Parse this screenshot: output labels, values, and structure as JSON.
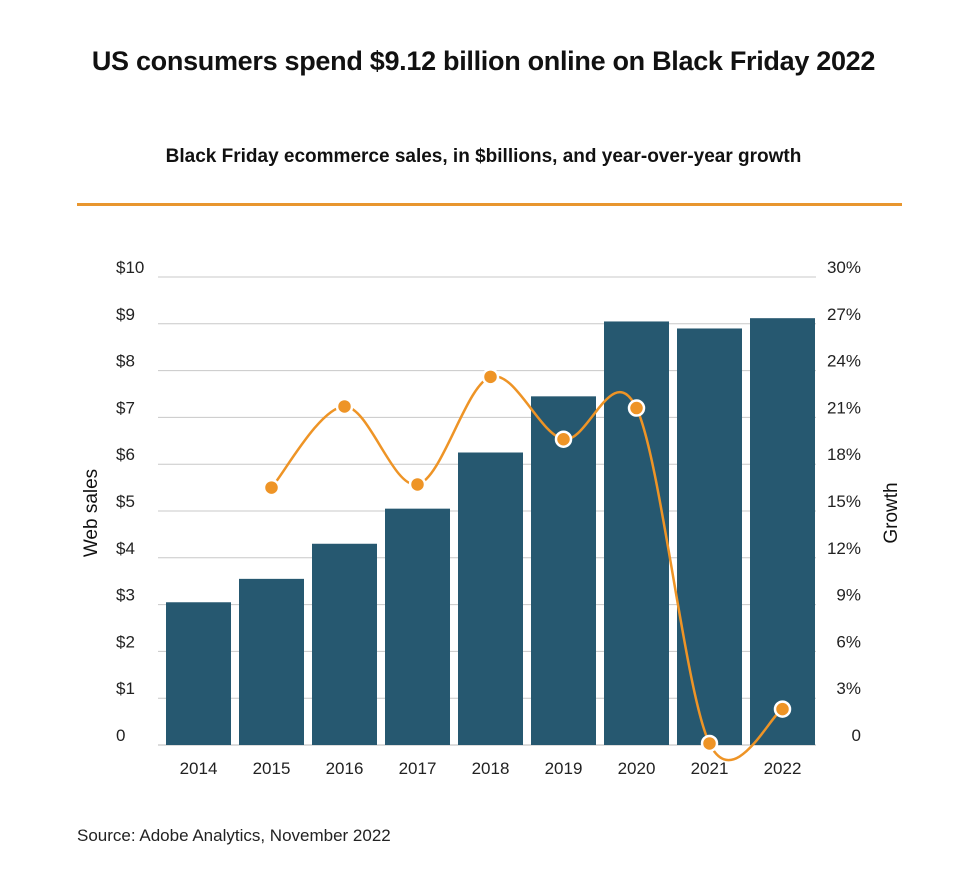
{
  "header": {
    "title": "US consumers spend $9.12 billion online on Black Friday 2022",
    "subtitle": "Black Friday ecommerce sales, in $billions, and year-over-year growth"
  },
  "footer": {
    "source": "Source: Adobe Analytics, November 2022"
  },
  "colors": {
    "bar": "#265870",
    "line": "#ee9426",
    "rule": "#e8962e",
    "grid": "#c8c8c8"
  },
  "chart_data": {
    "type": "bar",
    "categories": [
      "2014",
      "2015",
      "2016",
      "2017",
      "2018",
      "2019",
      "2020",
      "2021",
      "2022"
    ],
    "series": [
      {
        "name": "Web sales",
        "type": "bar",
        "axis": "left",
        "values": [
          3.05,
          3.55,
          4.3,
          5.05,
          6.25,
          7.45,
          9.05,
          8.9,
          9.12
        ]
      },
      {
        "name": "Growth",
        "type": "line",
        "axis": "right",
        "values": [
          null,
          16.5,
          21.7,
          16.7,
          23.6,
          19.6,
          21.6,
          0.1,
          2.3
        ]
      }
    ],
    "left_axis": {
      "label": "Web sales",
      "range": [
        0,
        10
      ],
      "ticks": [
        {
          "value": 0,
          "label": "0"
        },
        {
          "value": 1,
          "label": "$1"
        },
        {
          "value": 2,
          "label": "$2"
        },
        {
          "value": 3,
          "label": "$3"
        },
        {
          "value": 4,
          "label": "$4"
        },
        {
          "value": 5,
          "label": "$5"
        },
        {
          "value": 6,
          "label": "$6"
        },
        {
          "value": 7,
          "label": "$7"
        },
        {
          "value": 8,
          "label": "$8"
        },
        {
          "value": 9,
          "label": "$9"
        },
        {
          "value": 10,
          "label": "$10"
        }
      ]
    },
    "right_axis": {
      "label": "Growth",
      "range": [
        0,
        30
      ],
      "ticks": [
        {
          "value": 0,
          "label": "0"
        },
        {
          "value": 3,
          "label": "3%"
        },
        {
          "value": 6,
          "label": "6%"
        },
        {
          "value": 9,
          "label": "9%"
        },
        {
          "value": 12,
          "label": "12%"
        },
        {
          "value": 15,
          "label": "15%"
        },
        {
          "value": 18,
          "label": "18%"
        },
        {
          "value": 21,
          "label": "21%"
        },
        {
          "value": 24,
          "label": "24%"
        },
        {
          "value": 27,
          "label": "27%"
        },
        {
          "value": 30,
          "label": "30%"
        }
      ]
    },
    "grid": true
  }
}
